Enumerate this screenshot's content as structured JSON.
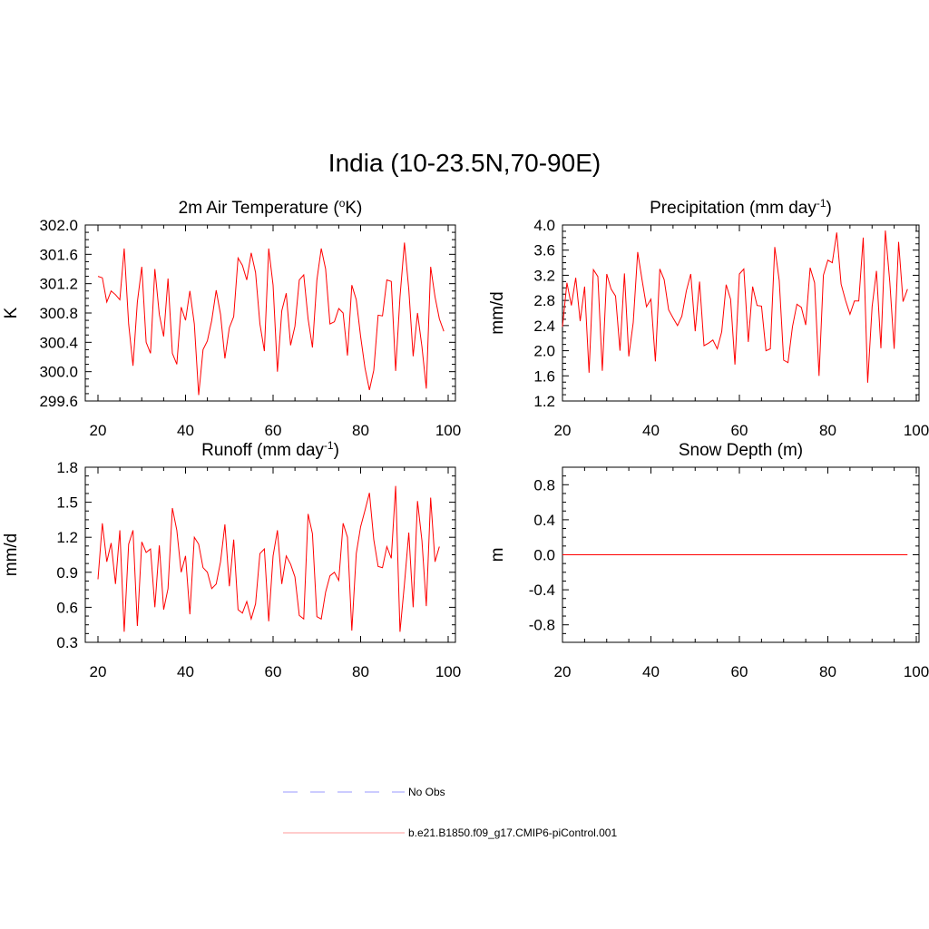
{
  "title": "India (10-23.5N,70-90E)",
  "colors": {
    "model": "#ff0000",
    "obs": "#9999ff",
    "axis": "#000000"
  },
  "legend": [
    {
      "label": "No Obs",
      "style": "dashed",
      "color": "#9999ff"
    },
    {
      "label": "b.e21.B1850.f09_g17.CMIP6-piControl.001",
      "style": "solid",
      "color": "#ff9999"
    }
  ],
  "chart_data": [
    {
      "type": "line",
      "title_main": "2m Air Temperature (",
      "title_sup_pre": "o",
      "title_post": "K)",
      "ylabel": "K",
      "xlim": [
        20,
        100
      ],
      "ylim": [
        299.6,
        302.0
      ],
      "xticks": [
        20,
        40,
        60,
        80,
        100
      ],
      "yticks": [
        "299.6",
        "300.0",
        "300.4",
        "300.8",
        "301.2",
        "301.6",
        "302.0"
      ],
      "series": [
        {
          "x_start": 20,
          "values": [
            301.3,
            301.28,
            300.95,
            301.1,
            301.05,
            300.98,
            301.68,
            300.65,
            300.08,
            300.95,
            301.43,
            300.4,
            300.25,
            301.4,
            300.78,
            300.48,
            301.27,
            300.25,
            300.1,
            300.88,
            300.7,
            301.1,
            300.65,
            299.68,
            300.3,
            300.42,
            300.7,
            301.11,
            300.78,
            300.18,
            300.6,
            300.75,
            301.55,
            301.45,
            301.25,
            301.62,
            301.35,
            300.65,
            300.28,
            301.68,
            301.18,
            300.0,
            300.83,
            301.07,
            300.36,
            300.62,
            301.25,
            301.32,
            300.72,
            300.33,
            301.25,
            301.68,
            301.4,
            300.65,
            300.68,
            300.86,
            300.8,
            300.22,
            301.18,
            300.98,
            300.48,
            300.05,
            299.75,
            300.02,
            300.77,
            300.76,
            301.25,
            301.23,
            300.01,
            301.02,
            301.76,
            301.12,
            300.21,
            300.8,
            300.34,
            299.77,
            301.43,
            301.02,
            300.72,
            300.55
          ]
        }
      ]
    },
    {
      "type": "line",
      "title_main": "Precipitation (mm day",
      "title_sup": "-1",
      "title_post": ")",
      "ylabel": "mm/d",
      "xlim": [
        20,
        100
      ],
      "ylim": [
        1.2,
        4.0
      ],
      "xticks": [
        20,
        40,
        60,
        80,
        100
      ],
      "yticks": [
        "1.2",
        "1.6",
        "2.0",
        "2.4",
        "2.8",
        "3.2",
        "3.6",
        "4.0"
      ],
      "series": [
        {
          "x_start": 20,
          "values": [
            2.38,
            3.08,
            2.72,
            3.16,
            2.47,
            3.02,
            1.65,
            3.29,
            3.18,
            1.68,
            3.22,
            2.98,
            2.87,
            2.0,
            3.23,
            1.91,
            2.45,
            3.57,
            3.12,
            2.7,
            2.82,
            1.83,
            3.3,
            3.13,
            2.65,
            2.52,
            2.4,
            2.55,
            2.95,
            3.22,
            2.31,
            3.1,
            2.08,
            2.12,
            2.17,
            2.03,
            2.3,
            3.05,
            2.82,
            1.78,
            3.22,
            3.3,
            2.14,
            3.02,
            2.72,
            2.71,
            2.0,
            2.03,
            3.65,
            3.12,
            1.85,
            1.81,
            2.38,
            2.74,
            2.69,
            2.41,
            3.32,
            3.08,
            1.6,
            3.2,
            3.44,
            3.4,
            3.88,
            3.06,
            2.8,
            2.58,
            2.79,
            2.79,
            3.8,
            1.49,
            2.7,
            3.27,
            2.04,
            3.91,
            3.09,
            2.03,
            3.73,
            2.78,
            2.98
          ]
        }
      ]
    },
    {
      "type": "line",
      "title_main": "Runoff (mm day",
      "title_sup": "-1",
      "title_post": ")",
      "ylabel": "mm/d",
      "xlim": [
        20,
        100
      ],
      "ylim": [
        0.3,
        1.8
      ],
      "xticks": [
        20,
        40,
        60,
        80,
        100
      ],
      "yticks": [
        "0.3",
        "0.6",
        "0.9",
        "1.2",
        "1.5",
        "1.8"
      ],
      "series": [
        {
          "x_start": 20,
          "values": [
            0.84,
            1.32,
            0.99,
            1.15,
            0.8,
            1.26,
            0.39,
            1.14,
            1.26,
            0.44,
            1.16,
            1.07,
            1.1,
            0.6,
            1.13,
            0.58,
            0.76,
            1.45,
            1.26,
            0.9,
            1.04,
            0.54,
            1.2,
            1.14,
            0.94,
            0.9,
            0.76,
            0.8,
            0.99,
            1.31,
            0.78,
            1.18,
            0.58,
            0.55,
            0.65,
            0.5,
            0.63,
            1.06,
            1.1,
            0.48,
            1.04,
            1.26,
            0.8,
            1.04,
            0.97,
            0.86,
            0.53,
            0.5,
            1.4,
            1.23,
            0.52,
            0.5,
            0.73,
            0.87,
            0.9,
            0.83,
            1.32,
            1.2,
            0.4,
            1.06,
            1.29,
            1.43,
            1.58,
            1.18,
            0.95,
            0.94,
            1.12,
            1.02,
            1.64,
            0.39,
            0.8,
            1.24,
            0.6,
            1.51,
            1.17,
            0.61,
            1.54,
            0.99,
            1.12
          ]
        }
      ]
    },
    {
      "type": "line",
      "title_main": "Snow Depth (m)",
      "ylabel": "m",
      "xlim": [
        20,
        100
      ],
      "ylim": [
        -1.0,
        1.0
      ],
      "xticks": [
        20,
        40,
        60,
        80,
        100
      ],
      "yticks": [
        "-0.8",
        "-0.4",
        "0.0",
        "0.4",
        "0.8"
      ],
      "series": [
        {
          "x_start": 20,
          "values": [
            0,
            0,
            0,
            0,
            0,
            0,
            0,
            0,
            0,
            0,
            0,
            0,
            0,
            0,
            0,
            0,
            0,
            0,
            0,
            0,
            0,
            0,
            0,
            0,
            0,
            0,
            0,
            0,
            0,
            0,
            0,
            0,
            0,
            0,
            0,
            0,
            0,
            0,
            0,
            0,
            0,
            0,
            0,
            0,
            0,
            0,
            0,
            0,
            0,
            0,
            0,
            0,
            0,
            0,
            0,
            0,
            0,
            0,
            0,
            0,
            0,
            0,
            0,
            0,
            0,
            0,
            0,
            0,
            0,
            0,
            0,
            0,
            0,
            0,
            0,
            0,
            0,
            0,
            0
          ]
        }
      ]
    }
  ]
}
